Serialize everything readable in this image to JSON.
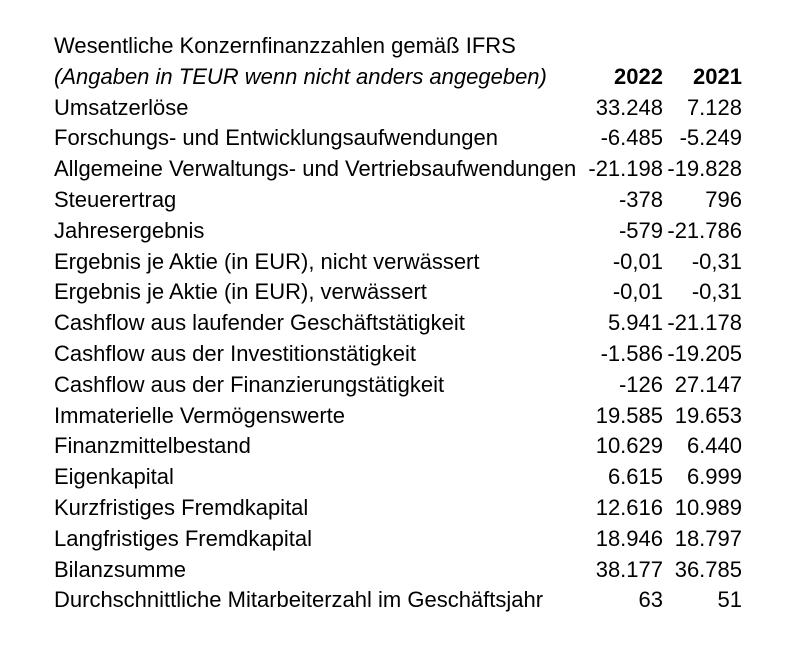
{
  "table": {
    "title": "Wesentliche Konzernfinanzzahlen gemäß IFRS",
    "subtitle": "(Angaben in TEUR wenn nicht anders angegeben)",
    "columns": [
      "2022",
      "2021"
    ],
    "colors": {
      "text": "#000000",
      "background": "#ffffff"
    },
    "rows": [
      {
        "label": "Umsatzerlöse",
        "y2022": "33.248",
        "y2021": "7.128"
      },
      {
        "label": "Forschungs- und Entwicklungsaufwendungen",
        "y2022": "-6.485",
        "y2021": "-5.249"
      },
      {
        "label": "Allgemeine Verwaltungs- und Vertriebsaufwendungen",
        "y2022": "-21.198",
        "y2021": "-19.828"
      },
      {
        "label": "Steuerertrag",
        "y2022": "-378",
        "y2021": "796"
      },
      {
        "label": "Jahresergebnis",
        "y2022": "-579",
        "y2021": "-21.786"
      },
      {
        "label": "Ergebnis je Aktie (in EUR), nicht verwässert",
        "y2022": "-0,01",
        "y2021": "-0,31"
      },
      {
        "label": "Ergebnis je Aktie (in EUR), verwässert",
        "y2022": "-0,01",
        "y2021": "-0,31"
      },
      {
        "label": "Cashflow aus laufender Geschäftstätigkeit",
        "y2022": "5.941",
        "y2021": "-21.178"
      },
      {
        "label": "Cashflow aus der Investitionstätigkeit",
        "y2022": "-1.586",
        "y2021": "-19.205"
      },
      {
        "label": "Cashflow aus der Finanzierungstätigkeit",
        "y2022": "-126",
        "y2021": "27.147"
      },
      {
        "label": "Immaterielle Vermögenswerte",
        "y2022": "19.585",
        "y2021": "19.653"
      },
      {
        "label": "Finanzmittelbestand",
        "y2022": "10.629",
        "y2021": "6.440"
      },
      {
        "label": "Eigenkapital",
        "y2022": "6.615",
        "y2021": "6.999"
      },
      {
        "label": "Kurzfristiges Fremdkapital",
        "y2022": "12.616",
        "y2021": "10.989"
      },
      {
        "label": "Langfristiges Fremdkapital",
        "y2022": "18.946",
        "y2021": "18.797"
      },
      {
        "label": "Bilanzsumme",
        "y2022": "38.177",
        "y2021": "36.785"
      },
      {
        "label": "Durchschnittliche Mitarbeiterzahl im Geschäftsjahr",
        "y2022": "63",
        "y2021": "51"
      }
    ]
  }
}
